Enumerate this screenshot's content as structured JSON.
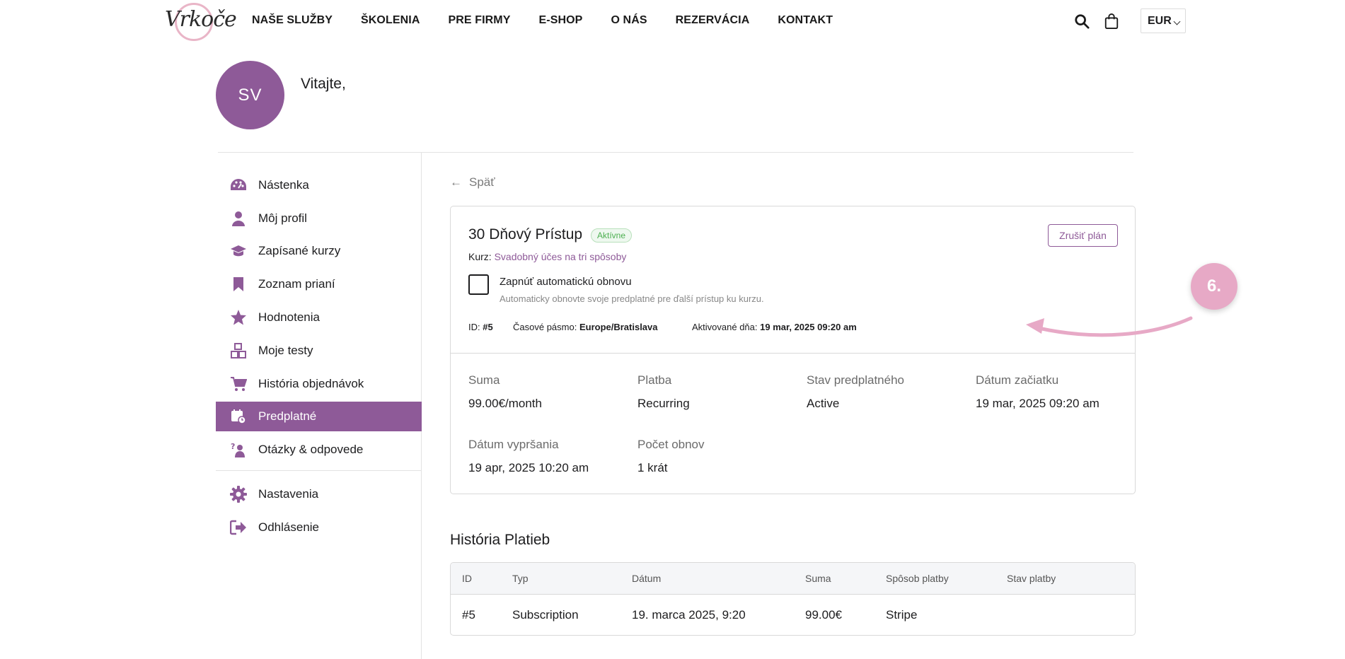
{
  "header": {
    "logo_text": "Vrkoče",
    "nav": [
      "NAŠE SLUŽBY",
      "ŠKOLENIA",
      "PRE FIRMY",
      "E-SHOP",
      "O NÁS",
      "REZERVÁCIA",
      "KONTAKT"
    ],
    "currency": "EUR"
  },
  "user": {
    "initials": "SV",
    "welcome": "Vitajte,"
  },
  "sidebar": {
    "items": [
      {
        "label": "Nástenka",
        "icon": "dashboard-icon"
      },
      {
        "label": "Môj profil",
        "icon": "user-icon"
      },
      {
        "label": "Zapísané kurzy",
        "icon": "graduation-cap-icon"
      },
      {
        "label": "Zoznam prianí",
        "icon": "bookmark-icon"
      },
      {
        "label": "Hodnotenia",
        "icon": "star-icon"
      },
      {
        "label": "Moje testy",
        "icon": "quiz-blocks-icon"
      },
      {
        "label": "História objednávok",
        "icon": "cart-icon"
      },
      {
        "label": "Predplatné",
        "icon": "calendar-subscription-icon"
      },
      {
        "label": "Otázky & odpovede",
        "icon": "question-person-icon"
      },
      {
        "label": "Nastavenia",
        "icon": "gear-icon"
      },
      {
        "label": "Odhlásenie",
        "icon": "logout-icon"
      }
    ],
    "active": "Predplatné"
  },
  "main": {
    "back_label": "Späť",
    "plan": {
      "title": "30 Dňový Prístup",
      "status": "Aktívne",
      "cancel_label": "Zrušiť plán",
      "course_prefix": "Kurz:",
      "course_name": "Svadobný účes na tri spôsoby",
      "renew_label": "Zapnúť automatickú obnovu",
      "renew_desc": "Automaticky obnovte svoje predplatné pre ďalší prístup ku kurzu.",
      "id_label": "ID:",
      "id_value": "#5",
      "tz_label": "Časové pásmo:",
      "tz_value": "Europe/Bratislava",
      "activated_label": "Aktivované dňa:",
      "activated_value": "19 mar, 2025 09:20 am"
    },
    "details": [
      {
        "label": "Suma",
        "value": "99.00€/month"
      },
      {
        "label": "Platba",
        "value": "Recurring"
      },
      {
        "label": "Stav predplatného",
        "value": "Active"
      },
      {
        "label": "Dátum začiatku",
        "value": "19 mar, 2025 09:20 am"
      },
      {
        "label": "Dátum vypršania",
        "value": "19 apr, 2025 10:20 am"
      },
      {
        "label": "Počet obnov",
        "value": "1 krát"
      }
    ],
    "history": {
      "title": "História Platieb",
      "columns": [
        "ID",
        "Typ",
        "Dátum",
        "Suma",
        "Spôsob platby",
        "Stav platby"
      ],
      "rows": [
        [
          "#5",
          "Subscription",
          "19. marca 2025, 9:20",
          "99.00€",
          "Stripe",
          ""
        ]
      ]
    }
  },
  "annotation": {
    "step": "6."
  },
  "colors": {
    "accent": "#8e5a98",
    "annotation": "#e7a9c6",
    "status_green": "#4caf50"
  }
}
